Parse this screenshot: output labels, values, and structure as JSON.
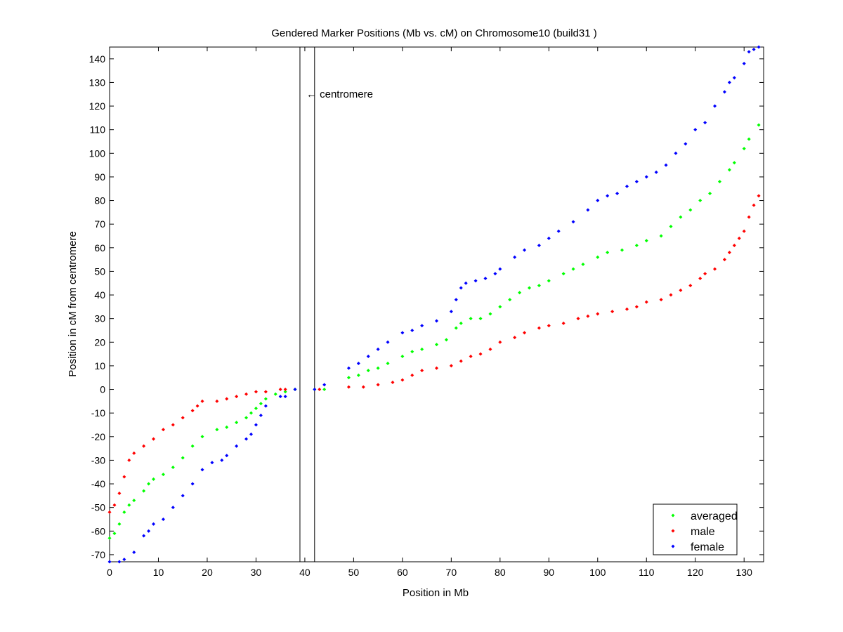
{
  "chart_data": {
    "type": "scatter",
    "title": "Gendered Marker Positions (Mb vs. cM) on Chromosome10 (build31 )",
    "xlabel": "Position in Mb",
    "ylabel": "Position in cM from centromere",
    "xlim": [
      0,
      134
    ],
    "ylim": [
      -73,
      145
    ],
    "xticks": [
      0,
      10,
      20,
      30,
      40,
      50,
      60,
      70,
      80,
      90,
      100,
      110,
      120,
      130
    ],
    "yticks": [
      -70,
      -60,
      -50,
      -40,
      -30,
      -20,
      -10,
      0,
      10,
      20,
      30,
      40,
      50,
      60,
      70,
      80,
      90,
      100,
      110,
      120,
      130,
      140
    ],
    "grid": false,
    "legend_position": "bottom-right",
    "centromere": {
      "x": [
        39,
        42
      ],
      "label": "← centromere",
      "label_y": 125
    },
    "series": [
      {
        "name": "averaged",
        "color": "#00ff00",
        "points": [
          [
            0,
            -63
          ],
          [
            1,
            -61
          ],
          [
            2,
            -57
          ],
          [
            3,
            -52
          ],
          [
            4,
            -49
          ],
          [
            5,
            -47
          ],
          [
            7,
            -43
          ],
          [
            8,
            -40
          ],
          [
            9,
            -38
          ],
          [
            11,
            -36
          ],
          [
            13,
            -33
          ],
          [
            15,
            -29
          ],
          [
            17,
            -24
          ],
          [
            19,
            -20
          ],
          [
            22,
            -17
          ],
          [
            24,
            -16
          ],
          [
            26,
            -14
          ],
          [
            28,
            -12
          ],
          [
            29,
            -10
          ],
          [
            30,
            -8
          ],
          [
            31,
            -6
          ],
          [
            32,
            -4
          ],
          [
            34,
            -2
          ],
          [
            36,
            -1
          ],
          [
            38,
            0
          ],
          [
            42,
            0
          ],
          [
            44,
            0
          ],
          [
            49,
            5
          ],
          [
            51,
            6
          ],
          [
            53,
            8
          ],
          [
            55,
            9
          ],
          [
            57,
            11
          ],
          [
            60,
            14
          ],
          [
            62,
            16
          ],
          [
            64,
            17
          ],
          [
            67,
            19
          ],
          [
            69,
            21
          ],
          [
            71,
            26
          ],
          [
            72,
            28
          ],
          [
            74,
            30
          ],
          [
            76,
            30
          ],
          [
            78,
            32
          ],
          [
            80,
            35
          ],
          [
            82,
            38
          ],
          [
            84,
            41
          ],
          [
            86,
            43
          ],
          [
            88,
            44
          ],
          [
            90,
            46
          ],
          [
            93,
            49
          ],
          [
            95,
            51
          ],
          [
            97,
            53
          ],
          [
            100,
            56
          ],
          [
            102,
            58
          ],
          [
            105,
            59
          ],
          [
            108,
            61
          ],
          [
            110,
            63
          ],
          [
            113,
            65
          ],
          [
            115,
            69
          ],
          [
            117,
            73
          ],
          [
            119,
            76
          ],
          [
            121,
            80
          ],
          [
            123,
            83
          ],
          [
            125,
            88
          ],
          [
            127,
            93
          ],
          [
            128,
            96
          ],
          [
            130,
            102
          ],
          [
            131,
            106
          ],
          [
            133,
            112
          ]
        ]
      },
      {
        "name": "male",
        "color": "#ff0000",
        "points": [
          [
            0,
            -52
          ],
          [
            1,
            -49
          ],
          [
            2,
            -44
          ],
          [
            3,
            -37
          ],
          [
            4,
            -30
          ],
          [
            5,
            -27
          ],
          [
            7,
            -24
          ],
          [
            9,
            -21
          ],
          [
            11,
            -17
          ],
          [
            13,
            -15
          ],
          [
            15,
            -12
          ],
          [
            17,
            -9
          ],
          [
            18,
            -7
          ],
          [
            19,
            -5
          ],
          [
            22,
            -5
          ],
          [
            24,
            -4
          ],
          [
            26,
            -3
          ],
          [
            28,
            -2
          ],
          [
            30,
            -1
          ],
          [
            32,
            -1
          ],
          [
            35,
            0
          ],
          [
            36,
            0
          ],
          [
            43,
            0
          ],
          [
            49,
            1
          ],
          [
            52,
            1
          ],
          [
            55,
            2
          ],
          [
            58,
            3
          ],
          [
            60,
            4
          ],
          [
            62,
            6
          ],
          [
            64,
            8
          ],
          [
            67,
            9
          ],
          [
            70,
            10
          ],
          [
            72,
            12
          ],
          [
            74,
            14
          ],
          [
            76,
            15
          ],
          [
            78,
            17
          ],
          [
            80,
            20
          ],
          [
            83,
            22
          ],
          [
            85,
            24
          ],
          [
            88,
            26
          ],
          [
            90,
            27
          ],
          [
            93,
            28
          ],
          [
            96,
            30
          ],
          [
            98,
            31
          ],
          [
            100,
            32
          ],
          [
            103,
            33
          ],
          [
            106,
            34
          ],
          [
            108,
            35
          ],
          [
            110,
            37
          ],
          [
            113,
            38
          ],
          [
            115,
            40
          ],
          [
            117,
            42
          ],
          [
            119,
            44
          ],
          [
            121,
            47
          ],
          [
            122,
            49
          ],
          [
            124,
            51
          ],
          [
            126,
            55
          ],
          [
            127,
            58
          ],
          [
            128,
            61
          ],
          [
            129,
            64
          ],
          [
            130,
            67
          ],
          [
            131,
            73
          ],
          [
            132,
            78
          ],
          [
            133,
            82
          ]
        ]
      },
      {
        "name": "female",
        "color": "#0000ff",
        "points": [
          [
            0,
            -73
          ],
          [
            2,
            -73
          ],
          [
            3,
            -72
          ],
          [
            5,
            -69
          ],
          [
            7,
            -62
          ],
          [
            8,
            -60
          ],
          [
            9,
            -57
          ],
          [
            11,
            -55
          ],
          [
            13,
            -50
          ],
          [
            15,
            -45
          ],
          [
            17,
            -40
          ],
          [
            19,
            -34
          ],
          [
            21,
            -31
          ],
          [
            23,
            -30
          ],
          [
            24,
            -28
          ],
          [
            26,
            -24
          ],
          [
            28,
            -21
          ],
          [
            29,
            -19
          ],
          [
            30,
            -15
          ],
          [
            31,
            -11
          ],
          [
            32,
            -7
          ],
          [
            35,
            -3
          ],
          [
            36,
            -3
          ],
          [
            38,
            0
          ],
          [
            42,
            0
          ],
          [
            44,
            2
          ],
          [
            49,
            9
          ],
          [
            51,
            11
          ],
          [
            53,
            14
          ],
          [
            55,
            17
          ],
          [
            57,
            20
          ],
          [
            60,
            24
          ],
          [
            62,
            25
          ],
          [
            64,
            27
          ],
          [
            67,
            29
          ],
          [
            70,
            33
          ],
          [
            71,
            38
          ],
          [
            72,
            43
          ],
          [
            73,
            45
          ],
          [
            75,
            46
          ],
          [
            77,
            47
          ],
          [
            79,
            49
          ],
          [
            80,
            51
          ],
          [
            83,
            56
          ],
          [
            85,
            59
          ],
          [
            88,
            61
          ],
          [
            90,
            64
          ],
          [
            92,
            67
          ],
          [
            95,
            71
          ],
          [
            98,
            76
          ],
          [
            100,
            80
          ],
          [
            102,
            82
          ],
          [
            104,
            83
          ],
          [
            106,
            86
          ],
          [
            108,
            88
          ],
          [
            110,
            90
          ],
          [
            112,
            92
          ],
          [
            114,
            95
          ],
          [
            116,
            100
          ],
          [
            118,
            104
          ],
          [
            120,
            110
          ],
          [
            122,
            113
          ],
          [
            124,
            120
          ],
          [
            126,
            126
          ],
          [
            127,
            130
          ],
          [
            128,
            132
          ],
          [
            130,
            138
          ],
          [
            131,
            143
          ],
          [
            132,
            144
          ],
          [
            133,
            145
          ]
        ]
      }
    ]
  }
}
